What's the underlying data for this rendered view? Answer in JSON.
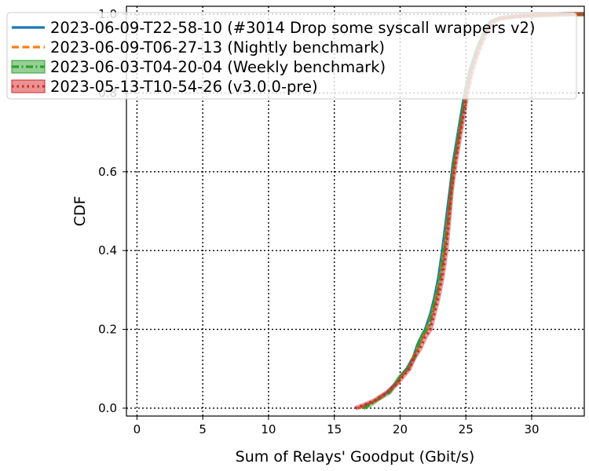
{
  "chart_data": {
    "type": "line",
    "xlabel": "Sum of Relays' Goodput (Gbit/s)",
    "ylabel": "CDF",
    "xlim": [
      -0.8,
      34
    ],
    "ylim": [
      -0.02,
      1.02
    ],
    "xticks": [
      0,
      5,
      10,
      15,
      20,
      25,
      30
    ],
    "xtick_labels": [
      "0",
      "5",
      "10",
      "15",
      "20",
      "25",
      "30"
    ],
    "yticks": [
      0.0,
      0.2,
      0.4,
      0.6,
      0.8,
      1.0
    ],
    "ytick_labels": [
      "0.0",
      "0.2",
      "0.4",
      "0.6",
      "0.8",
      "1.0"
    ],
    "grid": true,
    "legend_position": "top",
    "series": [
      {
        "name": "2023-06-09-T22-58-10 (#3014 Drop some syscall wrappers v2)",
        "color": "#1f77b4",
        "style": "solid",
        "x": [
          16.8,
          17.5,
          18.2,
          19.0,
          19.6,
          20.0,
          20.5,
          21.0,
          21.3,
          21.6,
          21.9,
          22.3,
          22.6,
          22.9,
          23.2,
          23.5,
          23.8,
          24.0,
          24.3,
          24.6,
          24.9,
          25.3,
          25.8,
          26.3,
          26.8,
          27.5,
          29.0,
          31.0,
          33.0,
          34.0
        ],
        "y": [
          0.0,
          0.01,
          0.02,
          0.04,
          0.06,
          0.08,
          0.1,
          0.13,
          0.16,
          0.18,
          0.2,
          0.24,
          0.28,
          0.33,
          0.4,
          0.48,
          0.56,
          0.62,
          0.68,
          0.74,
          0.8,
          0.86,
          0.91,
          0.95,
          0.98,
          0.99,
          0.995,
          0.998,
          1.0,
          1.0
        ]
      },
      {
        "name": "2023-06-09-T06-27-13 (Nightly benchmark)",
        "color": "#ff7f0e",
        "style": "dashed",
        "x": [
          16.9,
          17.6,
          18.3,
          19.1,
          19.7,
          20.1,
          20.6,
          21.0,
          21.4,
          21.7,
          22.0,
          22.4,
          22.7,
          23.0,
          23.3,
          23.6,
          23.9,
          24.1,
          24.4,
          24.7,
          25.0,
          25.4,
          25.9,
          26.4,
          26.9,
          27.6,
          29.0,
          31.0,
          33.0,
          34.0
        ],
        "y": [
          0.0,
          0.01,
          0.02,
          0.04,
          0.06,
          0.08,
          0.1,
          0.13,
          0.16,
          0.18,
          0.2,
          0.24,
          0.28,
          0.33,
          0.4,
          0.48,
          0.56,
          0.62,
          0.68,
          0.74,
          0.8,
          0.86,
          0.91,
          0.95,
          0.98,
          0.99,
          0.995,
          0.998,
          1.0,
          1.0
        ]
      },
      {
        "name": "2023-06-03-T04-20-04 (Weekly benchmark)",
        "color": "#2ca02c",
        "style": "dashdot",
        "x": [
          17.2,
          17.8,
          18.4,
          19.2,
          19.6,
          20.0,
          20.6,
          21.1,
          21.5,
          21.8,
          22.2,
          22.5,
          22.8,
          23.1,
          23.4,
          23.7,
          23.9,
          24.1,
          24.4,
          24.7,
          25.0,
          25.4,
          25.9,
          26.4,
          26.9,
          27.6,
          29.0,
          31.0,
          33.0,
          34.0
        ],
        "y": [
          0.0,
          0.01,
          0.025,
          0.04,
          0.06,
          0.08,
          0.1,
          0.13,
          0.17,
          0.19,
          0.21,
          0.25,
          0.29,
          0.34,
          0.41,
          0.49,
          0.56,
          0.62,
          0.68,
          0.74,
          0.8,
          0.86,
          0.91,
          0.95,
          0.98,
          0.99,
          0.995,
          0.998,
          1.0,
          1.0
        ]
      },
      {
        "name": "2023-05-13-T10-54-26 (v3.0.0-pre)",
        "color": "#d62728",
        "style": "dotted",
        "x": [
          16.6,
          17.4,
          18.1,
          19.0,
          19.7,
          20.2,
          20.7,
          21.1,
          21.5,
          21.9,
          22.3,
          22.6,
          22.9,
          23.2,
          23.5,
          23.7,
          23.9,
          24.2,
          24.5,
          24.8,
          25.1,
          25.5,
          26.0,
          26.5,
          27.0,
          27.7,
          29.0,
          31.0,
          33.0,
          34.0
        ],
        "y": [
          0.0,
          0.01,
          0.02,
          0.04,
          0.06,
          0.08,
          0.1,
          0.13,
          0.15,
          0.18,
          0.2,
          0.24,
          0.28,
          0.33,
          0.4,
          0.47,
          0.55,
          0.62,
          0.68,
          0.74,
          0.8,
          0.86,
          0.91,
          0.95,
          0.98,
          0.99,
          0.995,
          0.998,
          1.0,
          1.0
        ]
      }
    ]
  }
}
